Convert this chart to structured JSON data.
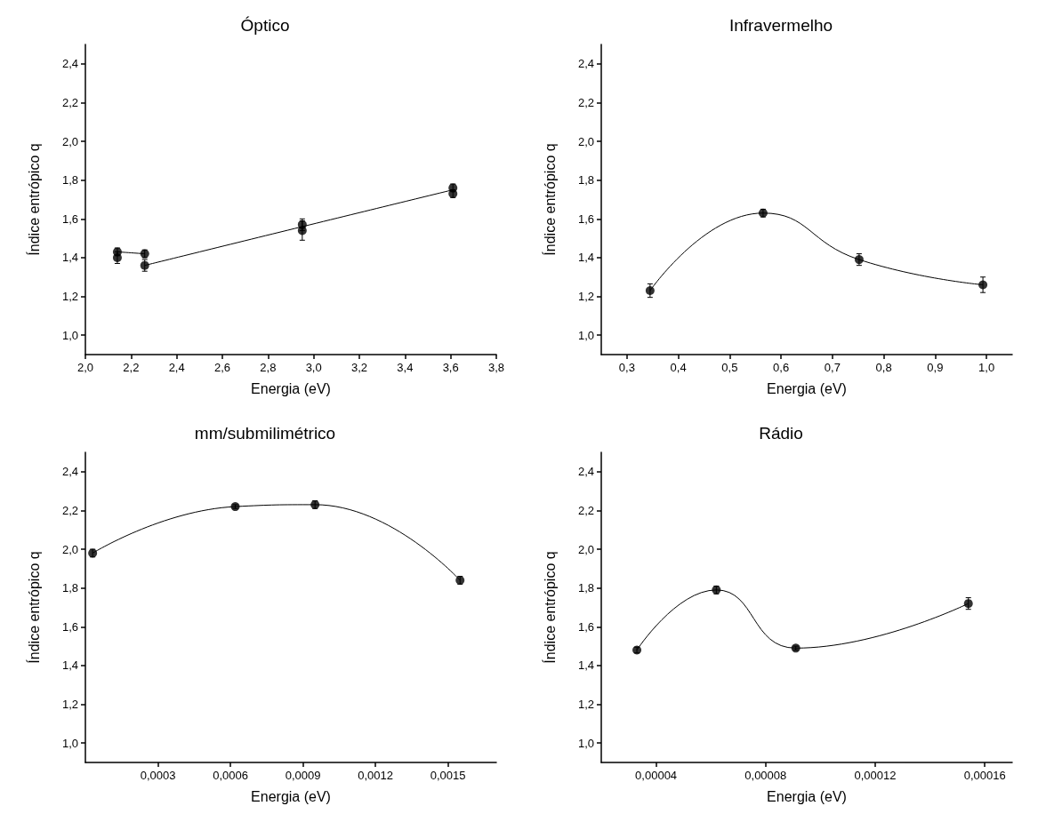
{
  "chart_data": [
    {
      "type": "scatter",
      "title": "Óptico",
      "xlabel": "Energia (eV)",
      "ylabel": "Índice entrópico q",
      "marker": "circle",
      "xlim": [
        2.0,
        3.8
      ],
      "xticks": [
        {
          "value": 2.0,
          "label": "2,0"
        },
        {
          "value": 2.2,
          "label": "2,2"
        },
        {
          "value": 2.4,
          "label": "2,4"
        },
        {
          "value": 2.6,
          "label": "2,6"
        },
        {
          "value": 2.8,
          "label": "2,8"
        },
        {
          "value": 3.0,
          "label": "3,0"
        },
        {
          "value": 3.2,
          "label": "3,2"
        },
        {
          "value": 3.4,
          "label": "3,4"
        },
        {
          "value": 3.6,
          "label": "3,6"
        },
        {
          "value": 3.8,
          "label": "3,8"
        }
      ],
      "ylim": [
        0.9,
        2.5
      ],
      "yticks": [
        {
          "value": 1.0,
          "label": "1,0"
        },
        {
          "value": 1.2,
          "label": "1,2"
        },
        {
          "value": 1.4,
          "label": "1,4"
        },
        {
          "value": 1.6,
          "label": "1,6"
        },
        {
          "value": 1.8,
          "label": "1,8"
        },
        {
          "value": 2.0,
          "label": "2,0"
        },
        {
          "value": 2.2,
          "label": "2,2"
        },
        {
          "value": 2.4,
          "label": "2,4"
        }
      ],
      "series": [
        {
          "color": "#000000",
          "x": [
            2.14,
            2.14,
            2.26,
            2.26,
            2.95,
            2.95,
            3.61,
            3.61
          ],
          "values": [
            1.43,
            1.4,
            1.42,
            1.36,
            1.57,
            1.54,
            1.76,
            1.73
          ],
          "errors": [
            0.02,
            0.03,
            0.02,
            0.03,
            0.03,
            0.05,
            0.02,
            0.02
          ]
        },
        {
          "type": "line",
          "color": "#000000",
          "marker": "none",
          "x": [
            2.14,
            2.26
          ],
          "values": [
            1.43,
            1.42
          ]
        },
        {
          "type": "line",
          "color": "#000000",
          "marker": "none",
          "x": [
            2.26,
            2.95,
            3.61
          ],
          "values": [
            1.36,
            1.56,
            1.75
          ]
        }
      ]
    },
    {
      "type": "scatter",
      "title": "Infravermelho",
      "xlabel": "Energia (eV)",
      "ylabel": "Índice entrópico q",
      "marker": "circle",
      "xlim": [
        0.25,
        1.05
      ],
      "xticks": [
        {
          "value": 0.3,
          "label": "0,3"
        },
        {
          "value": 0.4,
          "label": "0,4"
        },
        {
          "value": 0.5,
          "label": "0,5"
        },
        {
          "value": 0.6,
          "label": "0,6"
        },
        {
          "value": 0.7,
          "label": "0,7"
        },
        {
          "value": 0.8,
          "label": "0,8"
        },
        {
          "value": 0.9,
          "label": "0,9"
        },
        {
          "value": 1.0,
          "label": "1,0"
        }
      ],
      "ylim": [
        0.9,
        2.5
      ],
      "yticks": [
        {
          "value": 1.0,
          "label": "1,0"
        },
        {
          "value": 1.2,
          "label": "1,2"
        },
        {
          "value": 1.4,
          "label": "1,4"
        },
        {
          "value": 1.6,
          "label": "1,6"
        },
        {
          "value": 1.8,
          "label": "1,8"
        },
        {
          "value": 2.0,
          "label": "2,0"
        },
        {
          "value": 2.2,
          "label": "2,2"
        },
        {
          "value": 2.4,
          "label": "2,4"
        }
      ],
      "series": [
        {
          "color": "#000000",
          "x": [
            0.345,
            0.565,
            0.752,
            0.993
          ],
          "values": [
            1.23,
            1.63,
            1.39,
            1.26
          ],
          "errors": [
            0.035,
            0.02,
            0.03,
            0.04
          ]
        },
        {
          "type": "line",
          "color": "#000000",
          "marker": "none",
          "x": [
            0.345,
            0.565,
            0.752,
            0.993
          ],
          "values": [
            1.23,
            1.63,
            1.39,
            1.26
          ]
        }
      ]
    },
    {
      "type": "scatter",
      "title": "mm/submilimétrico",
      "xlabel": "Energia (eV)",
      "ylabel": "Índice entrópico q",
      "marker": "circle",
      "xlim": [
        0,
        0.0017
      ],
      "xticks": [
        {
          "value": 0.0003,
          "label": "0,0003"
        },
        {
          "value": 0.0006,
          "label": "0,0006"
        },
        {
          "value": 0.0009,
          "label": "0,0009"
        },
        {
          "value": 0.0012,
          "label": "0,0012"
        },
        {
          "value": 0.0015,
          "label": "0,0015"
        }
      ],
      "ylim": [
        0.9,
        2.5
      ],
      "yticks": [
        {
          "value": 1.0,
          "label": "1,0"
        },
        {
          "value": 1.2,
          "label": "1,2"
        },
        {
          "value": 1.4,
          "label": "1,4"
        },
        {
          "value": 1.6,
          "label": "1,6"
        },
        {
          "value": 1.8,
          "label": "1,8"
        },
        {
          "value": 2.0,
          "label": "2,0"
        },
        {
          "value": 2.2,
          "label": "2,2"
        },
        {
          "value": 2.4,
          "label": "2,4"
        }
      ],
      "series": [
        {
          "color": "#000000",
          "x": [
            3e-05,
            0.00062,
            0.00095,
            0.00155
          ],
          "values": [
            1.98,
            2.22,
            2.23,
            1.84
          ],
          "errors": [
            0.02,
            0.01,
            0.02,
            0.02
          ]
        },
        {
          "type": "line",
          "color": "#000000",
          "marker": "none",
          "x": [
            3e-05,
            0.00062,
            0.00095,
            0.00155
          ],
          "values": [
            1.98,
            2.22,
            2.23,
            1.84
          ]
        }
      ]
    },
    {
      "type": "scatter",
      "title": "Rádio",
      "xlabel": "Energia (eV)",
      "ylabel": "Índice entrópico q",
      "marker": "circle",
      "xlim": [
        2e-05,
        0.00017
      ],
      "xticks": [
        {
          "value": 4e-05,
          "label": "0,00004"
        },
        {
          "value": 8e-05,
          "label": "0,00008"
        },
        {
          "value": 0.00012,
          "label": "0,00012"
        },
        {
          "value": 0.00016,
          "label": "0,00016"
        }
      ],
      "ylim": [
        0.9,
        2.5
      ],
      "yticks": [
        {
          "value": 1.0,
          "label": "1,0"
        },
        {
          "value": 1.2,
          "label": "1,2"
        },
        {
          "value": 1.4,
          "label": "1,4"
        },
        {
          "value": 1.6,
          "label": "1,6"
        },
        {
          "value": 1.8,
          "label": "1,8"
        },
        {
          "value": 2.0,
          "label": "2,0"
        },
        {
          "value": 2.2,
          "label": "2,2"
        },
        {
          "value": 2.4,
          "label": "2,4"
        }
      ],
      "series": [
        {
          "color": "#000000",
          "x": [
            3.3e-05,
            6.2e-05,
            9.1e-05,
            0.000154
          ],
          "values": [
            1.48,
            1.79,
            1.49,
            1.72
          ],
          "errors": [
            0.015,
            0.02,
            0.01,
            0.03
          ]
        },
        {
          "type": "line",
          "color": "#000000",
          "marker": "none",
          "x": [
            3.3e-05,
            6.2e-05,
            9.1e-05,
            0.000154
          ],
          "values": [
            1.48,
            1.79,
            1.49,
            1.72
          ]
        }
      ]
    }
  ]
}
